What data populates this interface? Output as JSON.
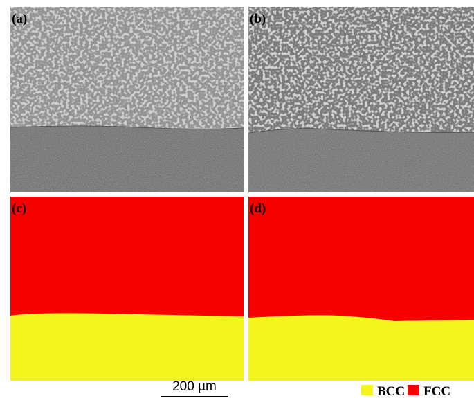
{
  "panels": [
    {
      "label": "(a)"
    },
    {
      "label": "(b)"
    },
    {
      "label": "(c)"
    },
    {
      "label": "(d)"
    }
  ],
  "scale_bar": {
    "label": "200 µm"
  },
  "legend": [
    {
      "name": "BCC",
      "color": "#f5f51e"
    },
    {
      "name": "FCC",
      "color": "#f70000"
    }
  ]
}
